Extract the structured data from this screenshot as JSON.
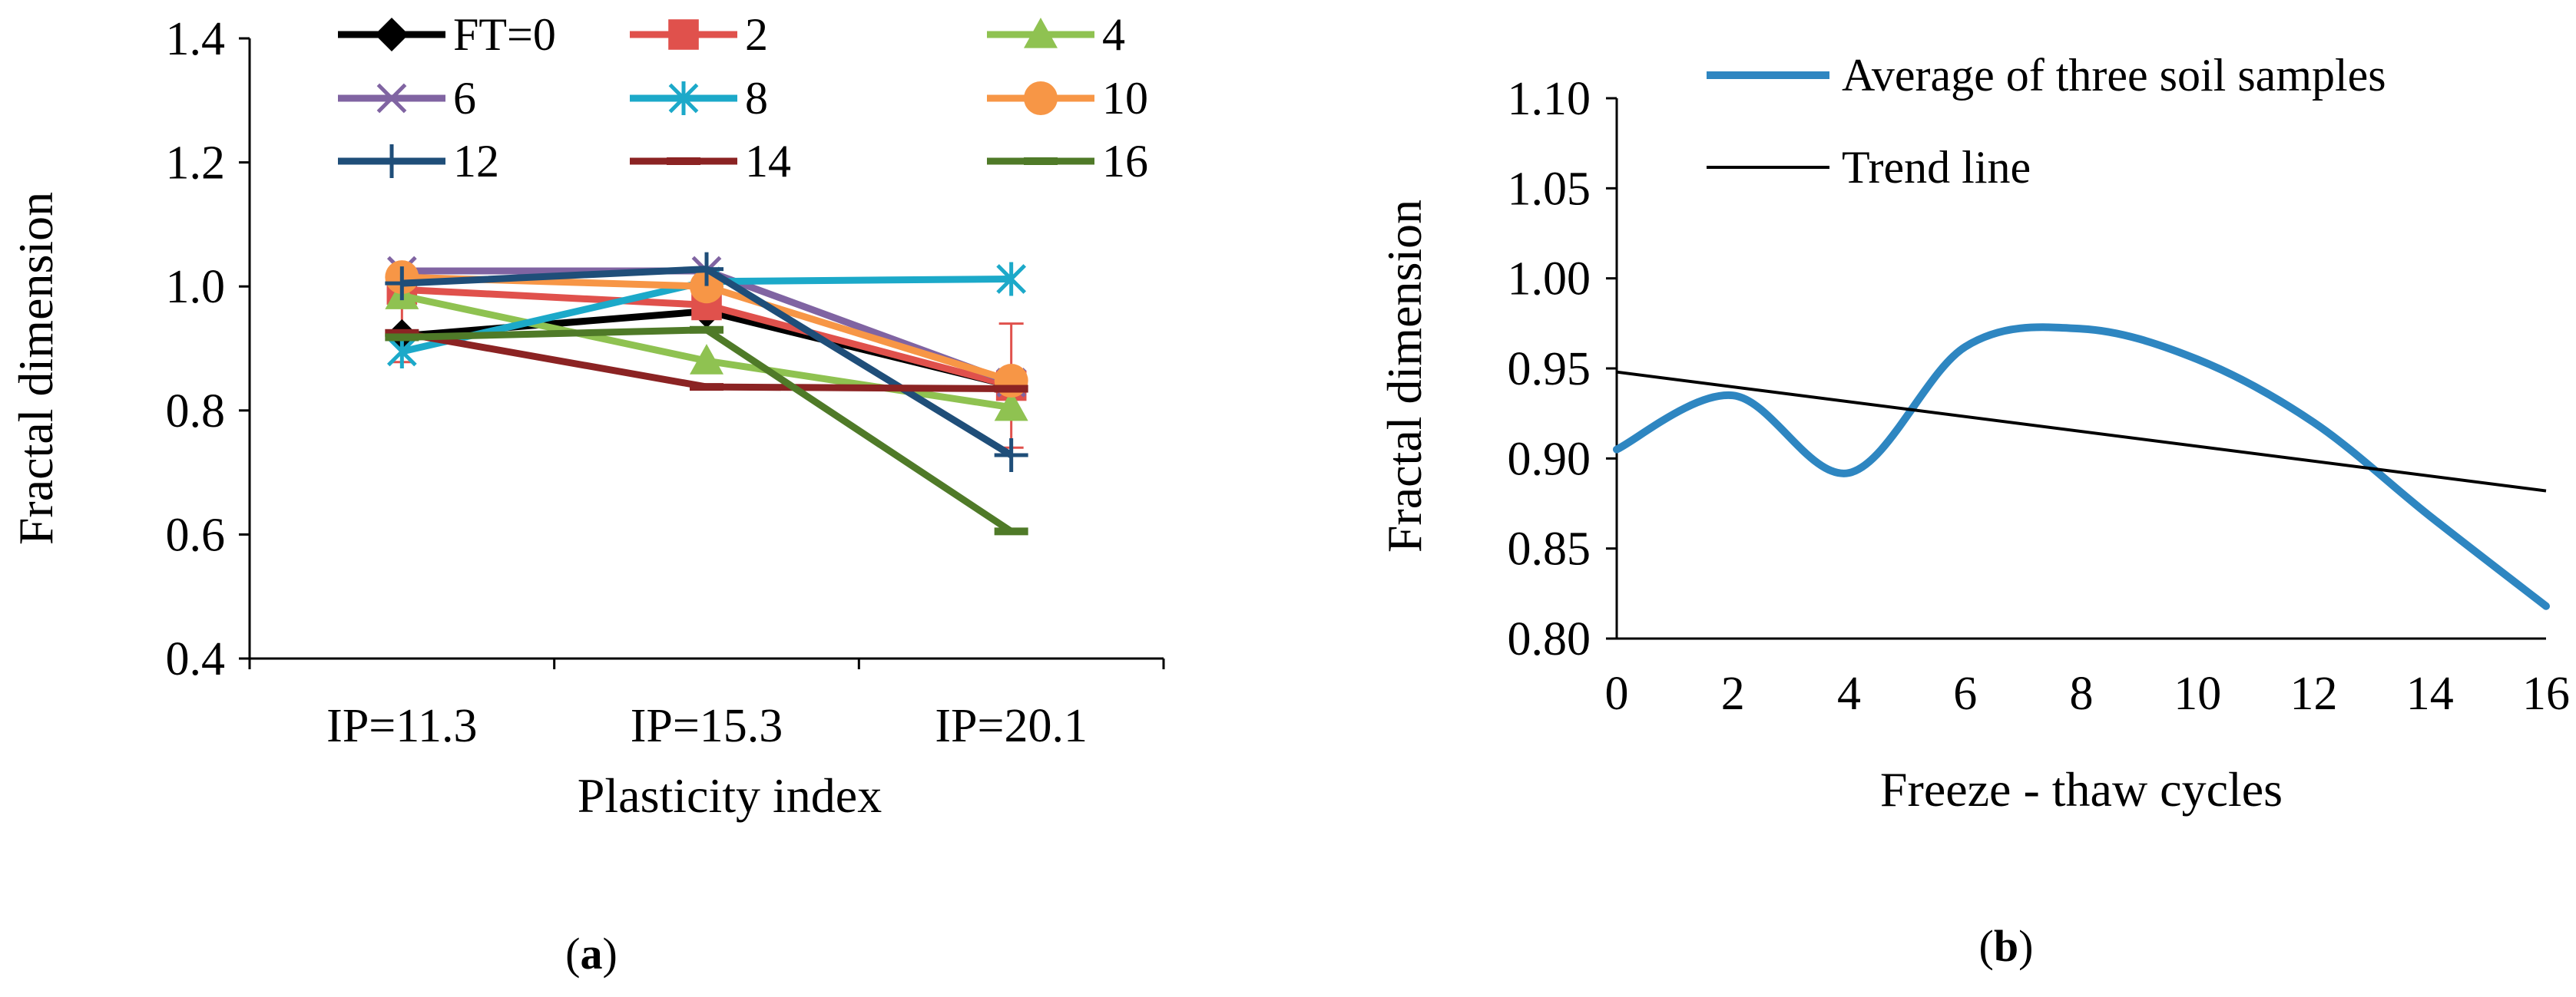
{
  "chart_data": [
    {
      "type": "line",
      "panel_label": "a",
      "xlabel": "Plasticity index",
      "ylabel": "Fractal dimension",
      "categories": [
        "IP=11.3",
        "IP=15.3",
        "IP=20.1"
      ],
      "ylim": [
        0.4,
        1.4
      ],
      "yticks": [
        "0.4",
        "0.6",
        "0.8",
        "1.0",
        "1.2",
        "1.4"
      ],
      "grid": false,
      "legend_position": "top",
      "series": [
        {
          "name": "FT=0",
          "values": [
            0.92,
            0.96,
            0.84
          ],
          "color": "#000000",
          "marker": "diamond"
        },
        {
          "name": "2",
          "values": [
            0.995,
            0.97,
            0.84
          ],
          "color": "#e0514c",
          "marker": "square"
        },
        {
          "name": "4",
          "values": [
            0.985,
            0.88,
            0.805
          ],
          "color": "#8fc251",
          "marker": "triangle"
        },
        {
          "name": "6",
          "values": [
            1.025,
            1.025,
            0.845
          ],
          "color": "#8064a2",
          "marker": "x"
        },
        {
          "name": "8",
          "values": [
            0.895,
            1.008,
            1.012
          ],
          "color": "#1ca9c9",
          "marker": "asterisk"
        },
        {
          "name": "10",
          "values": [
            1.015,
            1.0,
            0.848
          ],
          "color": "#f79646",
          "marker": "circle"
        },
        {
          "name": "12",
          "values": [
            1.005,
            1.028,
            0.728
          ],
          "color": "#1f4e79",
          "marker": "plus"
        },
        {
          "name": "14",
          "values": [
            0.925,
            0.838,
            0.835
          ],
          "color": "#8b2323",
          "marker": "dash"
        },
        {
          "name": "16",
          "values": [
            0.918,
            0.93,
            0.605
          ],
          "color": "#4f7a28",
          "marker": "dash"
        }
      ],
      "error_bars": [
        {
          "category": "IP=11.3",
          "low": 0.878,
          "high": 1.01,
          "color": "#e0514c"
        },
        {
          "category": "IP=20.1",
          "low": 0.74,
          "high": 0.94,
          "color": "#e0514c"
        }
      ]
    },
    {
      "type": "line",
      "panel_label": "b",
      "xlabel": "Freeze - thaw cycles",
      "ylabel": "Fractal dimension",
      "xlim": [
        0,
        16
      ],
      "ylim": [
        0.8,
        1.1
      ],
      "xticks": [
        "0",
        "2",
        "4",
        "6",
        "8",
        "10",
        "12",
        "14",
        "16"
      ],
      "yticks": [
        "0.80",
        "0.85",
        "0.90",
        "0.95",
        "1.00",
        "1.05",
        "1.10"
      ],
      "grid": false,
      "legend_position": "top",
      "series": [
        {
          "name": "Average of three soil samples",
          "color": "#2e86c1",
          "smooth": true,
          "x": [
            0,
            2,
            4,
            6,
            8,
            10,
            12,
            14,
            16
          ],
          "y": [
            0.905,
            0.935,
            0.892,
            0.962,
            0.972,
            0.955,
            0.92,
            0.868,
            0.818
          ]
        },
        {
          "name": "Trend line",
          "color": "#000000",
          "x": [
            0,
            16
          ],
          "y": [
            0.948,
            0.882
          ]
        }
      ]
    }
  ]
}
